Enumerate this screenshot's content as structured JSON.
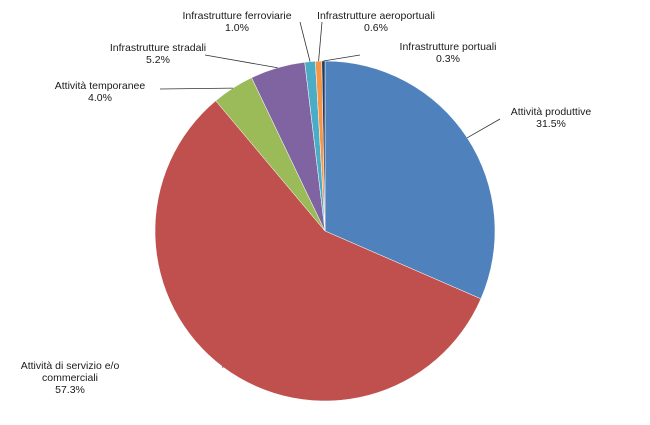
{
  "chart_data": {
    "type": "pie",
    "categories": [
      "Attività produttive",
      "Attività di servizio e/o commerciali",
      "Attività temporanee",
      "Infrastrutture stradali",
      "Infrastrutture ferroviarie",
      "Infrastrutture aeroportuali",
      "Infrastrutture portuali"
    ],
    "values": [
      31.5,
      57.3,
      4.0,
      5.2,
      1.0,
      0.6,
      0.3
    ],
    "value_labels": [
      "31.5%",
      "57.3%",
      "4.0%",
      "5.2%",
      "1.0%",
      "0.6%",
      "0.3%"
    ],
    "colors": [
      "#4f81bd",
      "#c0504d",
      "#9bbb59",
      "#8064a2",
      "#4bacc6",
      "#f79646",
      "#1f3864"
    ]
  }
}
